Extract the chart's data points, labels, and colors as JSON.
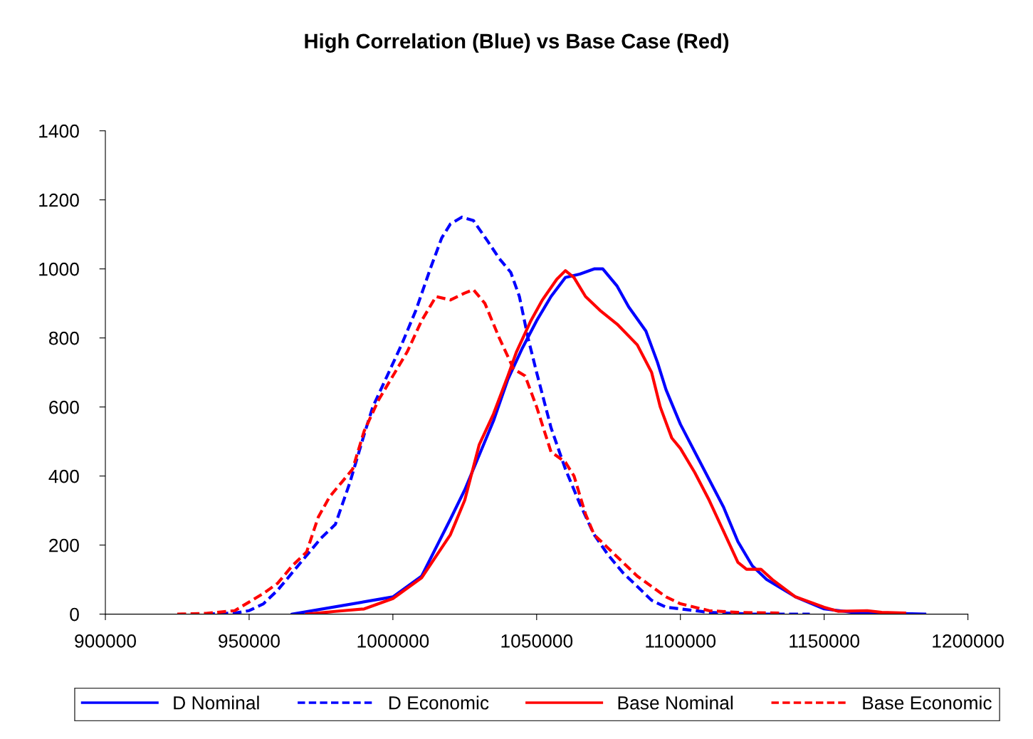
{
  "chart_data": {
    "type": "line",
    "title": "High Correlation (Blue) vs Base Case (Red)",
    "xlim": [
      900000,
      1200000
    ],
    "xticks": [
      900000,
      950000,
      1000000,
      1050000,
      1100000,
      1150000,
      1200000
    ],
    "ylim": [
      0,
      1400
    ],
    "yticks": [
      0,
      200,
      400,
      600,
      800,
      1000,
      1200,
      1400
    ],
    "grid": false,
    "legend": "bottom",
    "marker": "none",
    "series": [
      {
        "name": "D Nominal",
        "color": "#0000ff",
        "line_style": "solid",
        "x": [
          965000,
          1000000,
          1010000,
          1020000,
          1025000,
          1035000,
          1040000,
          1045000,
          1050000,
          1055000,
          1060000,
          1065000,
          1070000,
          1073000,
          1078000,
          1082000,
          1088000,
          1092000,
          1095000,
          1100000,
          1105000,
          1110000,
          1115000,
          1120000,
          1125000,
          1130000,
          1140000,
          1150000,
          1160000,
          1185000
        ],
        "values": [
          0,
          50,
          110,
          275,
          360,
          560,
          680,
          770,
          850,
          920,
          975,
          985,
          1000,
          1000,
          950,
          890,
          820,
          730,
          650,
          550,
          470,
          390,
          310,
          210,
          140,
          100,
          50,
          15,
          5,
          0
        ]
      },
      {
        "name": "D Economic",
        "color": "#0000ff",
        "line_style": "dashed",
        "x": [
          935000,
          945000,
          950000,
          955000,
          960000,
          965000,
          970000,
          975000,
          980000,
          985000,
          990000,
          993000,
          998000,
          1003000,
          1008000,
          1013000,
          1017000,
          1020000,
          1024000,
          1028000,
          1033000,
          1037000,
          1041000,
          1044000,
          1047000,
          1050000,
          1055000,
          1060000,
          1065000,
          1070000,
          1075000,
          1080000,
          1085000,
          1090000,
          1095000,
          1100000,
          1110000,
          1125000,
          1145000
        ],
        "values": [
          0,
          3,
          10,
          30,
          70,
          120,
          170,
          220,
          260,
          380,
          520,
          600,
          690,
          780,
          880,
          1000,
          1090,
          1130,
          1150,
          1140,
          1080,
          1030,
          990,
          920,
          800,
          700,
          540,
          420,
          320,
          230,
          170,
          120,
          80,
          40,
          20,
          15,
          5,
          0,
          0
        ]
      },
      {
        "name": "Base Nominal",
        "color": "#ff0000",
        "line_style": "solid",
        "x": [
          970000,
          980000,
          990000,
          1000000,
          1010000,
          1020000,
          1022000,
          1025000,
          1030000,
          1035000,
          1040000,
          1043000,
          1048000,
          1052000,
          1057000,
          1060000,
          1063000,
          1067000,
          1072000,
          1078000,
          1085000,
          1090000,
          1093000,
          1097000,
          1100000,
          1105000,
          1110000,
          1115000,
          1120000,
          1123000,
          1128000,
          1132000,
          1140000,
          1150000,
          1155000,
          1165000,
          1170000,
          1178000
        ],
        "values": [
          0,
          8,
          15,
          45,
          105,
          230,
          270,
          330,
          490,
          580,
          690,
          760,
          850,
          910,
          970,
          995,
          975,
          920,
          880,
          840,
          780,
          700,
          600,
          510,
          480,
          410,
          330,
          240,
          150,
          130,
          130,
          100,
          50,
          20,
          8,
          10,
          5,
          3
        ]
      },
      {
        "name": "Base Economic",
        "color": "#ff0000",
        "line_style": "dashed",
        "x": [
          925000,
          935000,
          945000,
          950000,
          955000,
          960000,
          965000,
          970000,
          974000,
          978000,
          982000,
          986000,
          990000,
          995000,
          1000000,
          1005000,
          1010000,
          1015000,
          1020000,
          1025000,
          1028000,
          1032000,
          1037000,
          1042000,
          1046000,
          1050000,
          1055000,
          1060000,
          1063000,
          1067000,
          1070000,
          1075000,
          1080000,
          1085000,
          1090000,
          1095000,
          1100000,
          1110000,
          1120000,
          1135000
        ],
        "values": [
          0,
          2,
          10,
          35,
          60,
          90,
          140,
          180,
          280,
          340,
          380,
          420,
          530,
          620,
          690,
          760,
          850,
          920,
          910,
          930,
          940,
          900,
          800,
          710,
          690,
          600,
          470,
          440,
          400,
          290,
          230,
          190,
          150,
          110,
          80,
          50,
          30,
          10,
          5,
          3
        ]
      }
    ]
  }
}
